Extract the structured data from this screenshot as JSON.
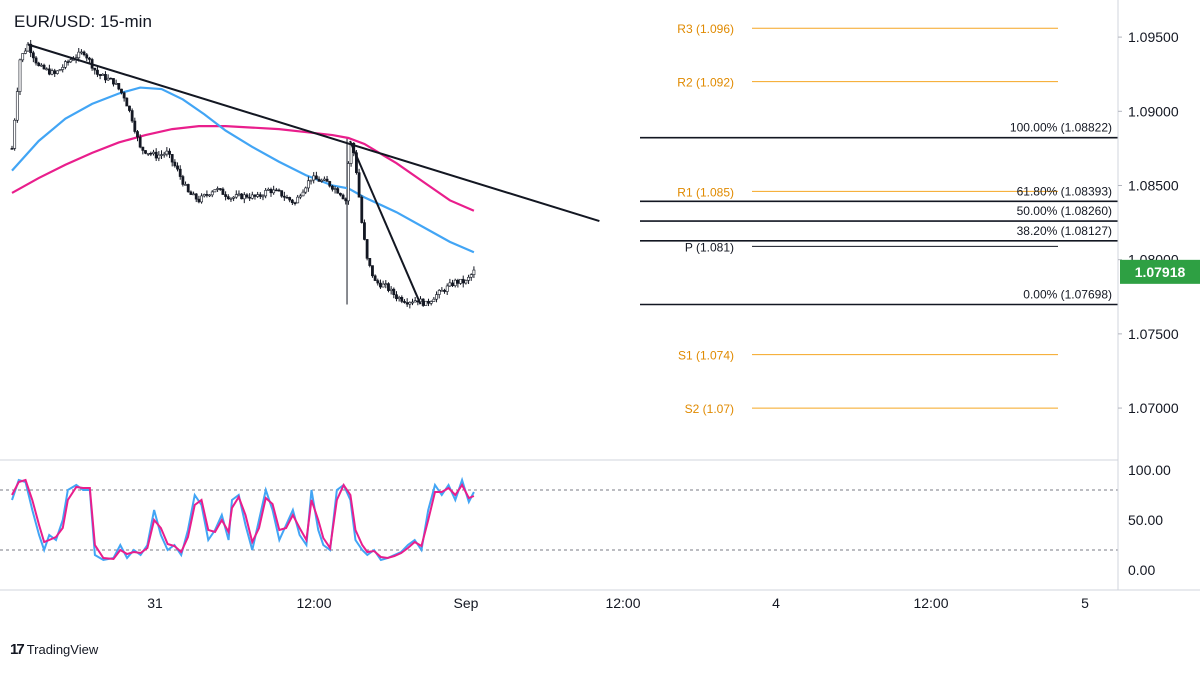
{
  "title": "EUR/USD: 15-min",
  "brand": "TradingView",
  "brand_logo": "tradingview-logo",
  "colors": {
    "candle": "#131722",
    "trendline": "#131722",
    "ma_fast": "#42a5f5",
    "ma_slow": "#e91e8c",
    "pivot_levels": "#f5a623",
    "fib_levels": "#131722",
    "stoch_k": "#42a5f5",
    "stoch_d": "#e91e8c",
    "price_badge": "#2ea043",
    "pivot_text": "#e08a00"
  },
  "price_axis": {
    "ticks": [
      "1.09500",
      "1.09000",
      "1.08500",
      "1.08000",
      "1.07500",
      "1.07000"
    ],
    "current_price": "1.07918"
  },
  "time_axis": {
    "ticks": [
      "31",
      "12:00",
      "Sep",
      "12:00",
      "4",
      "12:00",
      "5"
    ]
  },
  "stoch_axis": {
    "ticks": [
      "100.00",
      "50.00",
      "0.00"
    ]
  },
  "pivot_labels": [
    "R3 (1.096)",
    "R2 (1.092)",
    "R1 (1.085)",
    "P (1.081)",
    "S1 (1.074)",
    "S2 (1.07)"
  ],
  "fib_labels": [
    "100.00% (1.08822)",
    "61.80% (1.08393)",
    "50.00% (1.08260)",
    "38.20% (1.08127)",
    "0.00% (1.07698)"
  ],
  "chart_data": {
    "type": "line",
    "symbol": "EUR/USD",
    "timeframe": "15-min",
    "x_ticks": [
      "31",
      "12:00",
      "Sep",
      "12:00",
      "4",
      "12:00",
      "5"
    ],
    "ylim": [
      1.0665,
      1.0975
    ],
    "price_path": [
      [
        0,
        1.0875
      ],
      [
        1.5,
        1.0935
      ],
      [
        3,
        1.0945
      ],
      [
        5,
        1.093
      ],
      [
        8,
        1.0925
      ],
      [
        11,
        1.0935
      ],
      [
        13.5,
        1.094
      ],
      [
        16,
        1.0925
      ],
      [
        19,
        1.092
      ],
      [
        21,
        1.091
      ],
      [
        22.5,
        1.0895
      ],
      [
        24,
        1.0875
      ],
      [
        27,
        1.087
      ],
      [
        29,
        1.0872
      ],
      [
        31,
        1.086
      ],
      [
        33,
        1.0845
      ],
      [
        35,
        1.084
      ],
      [
        38,
        1.0848
      ],
      [
        41,
        1.0842
      ],
      [
        44,
        1.0843
      ],
      [
        46,
        1.0842
      ],
      [
        48,
        1.0847
      ],
      [
        50,
        1.0845
      ],
      [
        53,
        1.0838
      ],
      [
        54,
        1.0845
      ],
      [
        56,
        1.0855
      ],
      [
        59,
        1.0852
      ],
      [
        61.5,
        1.0845
      ],
      [
        62.5,
        1.084
      ],
      [
        63.3,
        1.088
      ],
      [
        64.2,
        1.087
      ],
      [
        65.5,
        1.0825
      ],
      [
        66.5,
        1.08
      ],
      [
        68,
        1.0785
      ],
      [
        70,
        1.0782
      ],
      [
        72,
        1.0775
      ],
      [
        74,
        1.0772
      ],
      [
        76,
        1.0773
      ],
      [
        77.5,
        1.077
      ],
      [
        79,
        1.0775
      ],
      [
        81,
        1.078
      ],
      [
        83,
        1.0785
      ],
      [
        85,
        1.0785
      ],
      [
        86.5,
        1.0792
      ]
    ],
    "ma_fast": [
      [
        0,
        1.086
      ],
      [
        5,
        1.088
      ],
      [
        10,
        1.0895
      ],
      [
        15,
        1.0905
      ],
      [
        20,
        1.0912
      ],
      [
        24,
        1.0916
      ],
      [
        28,
        1.0915
      ],
      [
        32,
        1.0908
      ],
      [
        36,
        1.0898
      ],
      [
        40,
        1.0887
      ],
      [
        45,
        1.0876
      ],
      [
        50,
        1.0866
      ],
      [
        55,
        1.0857
      ],
      [
        60,
        1.085
      ],
      [
        63,
        1.0848
      ],
      [
        66,
        1.0842
      ],
      [
        72,
        1.0832
      ],
      [
        78,
        1.082
      ],
      [
        82,
        1.0812
      ],
      [
        86.5,
        1.0805
      ]
    ],
    "ma_slow": [
      [
        0,
        1.0845
      ],
      [
        5,
        1.0855
      ],
      [
        10,
        1.0864
      ],
      [
        15,
        1.0872
      ],
      [
        20,
        1.0879
      ],
      [
        25,
        1.0884
      ],
      [
        30,
        1.0888
      ],
      [
        35,
        1.089
      ],
      [
        40,
        1.089
      ],
      [
        45,
        1.0889
      ],
      [
        50,
        1.0888
      ],
      [
        55,
        1.0886
      ],
      [
        60,
        1.0884
      ],
      [
        63,
        1.0882
      ],
      [
        66,
        1.0878
      ],
      [
        72,
        1.0865
      ],
      [
        78,
        1.085
      ],
      [
        82,
        1.084
      ],
      [
        86.5,
        1.0833
      ]
    ],
    "trendlines": [
      {
        "name": "descending",
        "from": [
          3,
          1.0945
        ],
        "to": [
          110,
          1.0826
        ]
      },
      {
        "name": "swing",
        "from": [
          63.3,
          1.088
        ],
        "to": [
          76.5,
          1.077
        ]
      }
    ],
    "pivots": [
      {
        "label": "R3 (1.096)",
        "value": 1.0956
      },
      {
        "label": "R2 (1.092)",
        "value": 1.092
      },
      {
        "label": "R1 (1.085)",
        "value": 1.0846
      },
      {
        "label": "P (1.081)",
        "value": 1.0809
      },
      {
        "label": "S1 (1.074)",
        "value": 1.0736
      },
      {
        "label": "S2 (1.07)",
        "value": 1.07
      }
    ],
    "fibonacci": [
      {
        "label": "100.00% (1.08822)",
        "value": 1.08822
      },
      {
        "label": "61.80% (1.08393)",
        "value": 1.08393
      },
      {
        "label": "50.00% (1.08260)",
        "value": 1.0826
      },
      {
        "label": "38.20% (1.08127)",
        "value": 1.08127
      },
      {
        "label": "0.00% (1.07698)",
        "value": 1.07698
      }
    ],
    "current_price": 1.07918,
    "stochastic": {
      "ylim": [
        0,
        100
      ],
      "levels": [
        80,
        20
      ],
      "k": [
        [
          0,
          70
        ],
        [
          2,
          90
        ],
        [
          4,
          88
        ],
        [
          6,
          60
        ],
        [
          8,
          35
        ],
        [
          9.5,
          20
        ],
        [
          11,
          35
        ],
        [
          13,
          30
        ],
        [
          15,
          50
        ],
        [
          16.5,
          80
        ],
        [
          19,
          85
        ],
        [
          21,
          80
        ],
        [
          23,
          80
        ],
        [
          24.5,
          15
        ],
        [
          27,
          10
        ],
        [
          30,
          12
        ],
        [
          32,
          25
        ],
        [
          34,
          12
        ],
        [
          36,
          20
        ],
        [
          38,
          15
        ],
        [
          40,
          25
        ],
        [
          42,
          60
        ],
        [
          44,
          35
        ],
        [
          46,
          20
        ],
        [
          48,
          25
        ],
        [
          50,
          15
        ],
        [
          52,
          40
        ],
        [
          54,
          75
        ],
        [
          56,
          65
        ],
        [
          58,
          30
        ],
        [
          60,
          40
        ],
        [
          62,
          55
        ],
        [
          64,
          30
        ],
        [
          65,
          70
        ],
        [
          67,
          75
        ],
        [
          69,
          45
        ],
        [
          71,
          20
        ],
        [
          73,
          50
        ],
        [
          75,
          80
        ],
        [
          77,
          60
        ],
        [
          79,
          30
        ],
        [
          81,
          45
        ],
        [
          83,
          60
        ],
        [
          85,
          35
        ],
        [
          87,
          25
        ],
        [
          88.5,
          80
        ],
        [
          90.5,
          40
        ],
        [
          92,
          25
        ],
        [
          94,
          20
        ],
        [
          96,
          80
        ],
        [
          98,
          85
        ],
        [
          100,
          70
        ],
        [
          101.5,
          30
        ],
        [
          103.5,
          20
        ],
        [
          105,
          15
        ],
        [
          107,
          20
        ],
        [
          109,
          10
        ],
        [
          111,
          12
        ],
        [
          113,
          15
        ],
        [
          115,
          18
        ],
        [
          117,
          25
        ],
        [
          119,
          30
        ],
        [
          121,
          20
        ],
        [
          123,
          60
        ],
        [
          125,
          85
        ],
        [
          127,
          75
        ],
        [
          129,
          85
        ],
        [
          131,
          70
        ],
        [
          133,
          90
        ],
        [
          135,
          68
        ],
        [
          136.5,
          78
        ]
      ],
      "d": [
        [
          0,
          75
        ],
        [
          2,
          88
        ],
        [
          4,
          90
        ],
        [
          6,
          70
        ],
        [
          8,
          45
        ],
        [
          9.5,
          28
        ],
        [
          11,
          30
        ],
        [
          13,
          33
        ],
        [
          15,
          42
        ],
        [
          16.5,
          70
        ],
        [
          19,
          83
        ],
        [
          21,
          82
        ],
        [
          23,
          82
        ],
        [
          24.5,
          25
        ],
        [
          27,
          12
        ],
        [
          30,
          11
        ],
        [
          32,
          20
        ],
        [
          34,
          16
        ],
        [
          36,
          18
        ],
        [
          38,
          17
        ],
        [
          40,
          22
        ],
        [
          42,
          50
        ],
        [
          44,
          42
        ],
        [
          46,
          26
        ],
        [
          48,
          24
        ],
        [
          50,
          18
        ],
        [
          52,
          33
        ],
        [
          54,
          65
        ],
        [
          56,
          70
        ],
        [
          58,
          40
        ],
        [
          60,
          38
        ],
        [
          62,
          50
        ],
        [
          64,
          38
        ],
        [
          65,
          62
        ],
        [
          67,
          73
        ],
        [
          69,
          55
        ],
        [
          71,
          28
        ],
        [
          73,
          42
        ],
        [
          75,
          72
        ],
        [
          77,
          66
        ],
        [
          79,
          40
        ],
        [
          81,
          42
        ],
        [
          83,
          55
        ],
        [
          85,
          42
        ],
        [
          87,
          30
        ],
        [
          88.5,
          70
        ],
        [
          90.5,
          50
        ],
        [
          92,
          32
        ],
        [
          94,
          22
        ],
        [
          96,
          70
        ],
        [
          98,
          85
        ],
        [
          100,
          75
        ],
        [
          101.5,
          40
        ],
        [
          103.5,
          25
        ],
        [
          105,
          18
        ],
        [
          107,
          19
        ],
        [
          109,
          13
        ],
        [
          111,
          12
        ],
        [
          113,
          14
        ],
        [
          115,
          17
        ],
        [
          117,
          22
        ],
        [
          119,
          28
        ],
        [
          121,
          24
        ],
        [
          123,
          50
        ],
        [
          125,
          78
        ],
        [
          127,
          78
        ],
        [
          129,
          82
        ],
        [
          131,
          75
        ],
        [
          133,
          85
        ],
        [
          135,
          72
        ],
        [
          136.5,
          74
        ]
      ]
    }
  }
}
